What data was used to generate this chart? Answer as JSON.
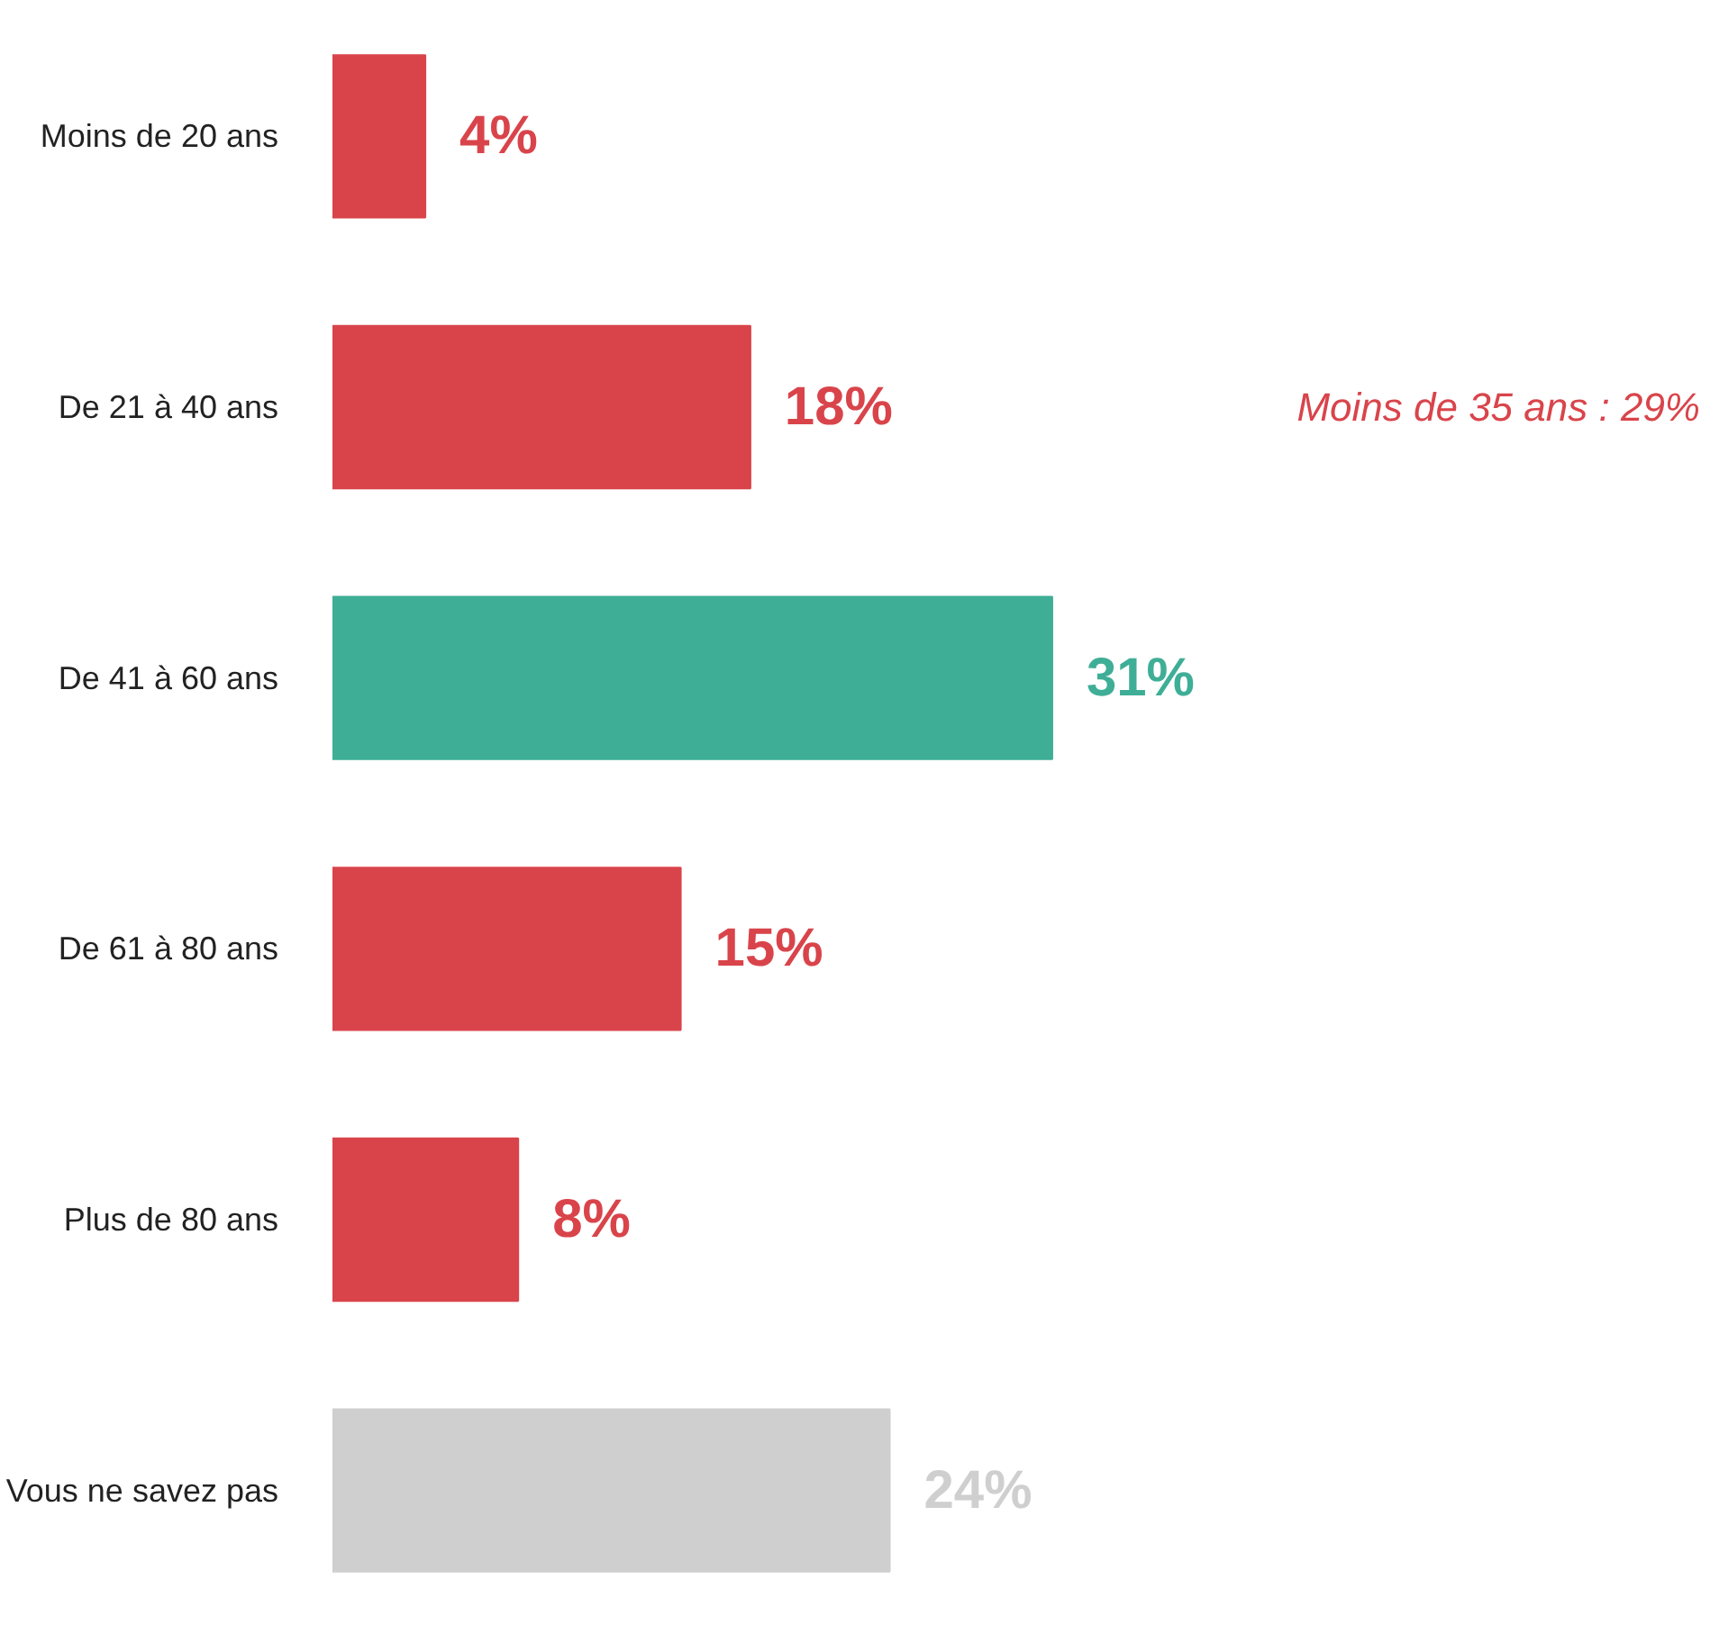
{
  "chart_data": {
    "type": "bar",
    "orientation": "horizontal",
    "categories": [
      "Moins de 20 ans",
      "De 21 à 40 ans",
      "De 41 à 60 ans",
      "De 61 à 80 ans",
      "Plus de 80 ans",
      "Vous ne savez pas"
    ],
    "values": [
      4,
      18,
      31,
      15,
      8,
      24
    ],
    "colors": [
      "#d9444b",
      "#d9444b",
      "#3fae96",
      "#d9444b",
      "#d9444b",
      "#d0cfcf"
    ],
    "value_labels": [
      "4%",
      "18%",
      "31%",
      "15%",
      "8%",
      "24%"
    ],
    "annotations": [
      "Moins de 35 ans : 29%"
    ],
    "grid": false
  }
}
